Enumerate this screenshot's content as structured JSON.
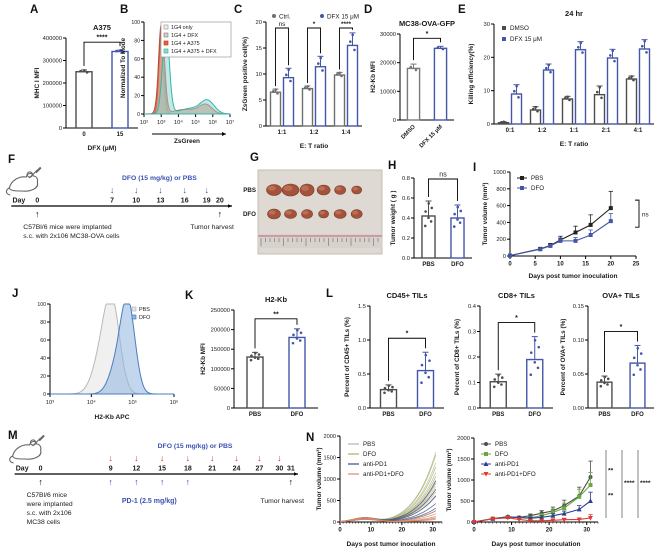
{
  "panels": {
    "A": {
      "letter": "A"
    },
    "B": {
      "letter": "B"
    },
    "C": {
      "letter": "C"
    },
    "D": {
      "letter": "D"
    },
    "E": {
      "letter": "E"
    },
    "F": {
      "letter": "F"
    },
    "G": {
      "letter": "G"
    },
    "H": {
      "letter": "H"
    },
    "I": {
      "letter": "I"
    },
    "J": {
      "letter": "J"
    },
    "K": {
      "letter": "K"
    },
    "L": {
      "letter": "L"
    },
    "M": {
      "letter": "M"
    },
    "N": {
      "letter": "N"
    }
  },
  "colors": {
    "blue": "#4456a8",
    "gray": "#4d4d4d",
    "red": "#c23b2a",
    "teal": "#39b3aa",
    "green": "#6aa93f",
    "navy": "#2c3e8c"
  },
  "chart_data": {
    "A": {
      "type": "bar",
      "title": "A375",
      "ylabel": "MHC I MFI",
      "xlabel": "DFX (μM)",
      "categories": [
        "0",
        "15"
      ],
      "series": [
        {
          "colors": [
            "#4d4d4d",
            "#4456a8"
          ],
          "values": [
            250000,
            340000
          ],
          "errors": [
            8000,
            6000
          ]
        }
      ],
      "ylim": [
        0,
        400000
      ],
      "yticks": [
        "0",
        "100000",
        "200000",
        "300000",
        "400000"
      ],
      "sig": "****",
      "sig_raise": 8,
      "ndots": 3,
      "ml": 34,
      "mt": 20,
      "mb": 24
    },
    "B": {
      "type": "hist",
      "ylabel": "Normalized To Mode",
      "xlabel": "ZsGreen",
      "xarrow": true,
      "legend_box": true,
      "yticks": [
        "0",
        "20",
        "40",
        "60",
        "80",
        "100"
      ],
      "xticklabels": [
        "10²",
        "10³",
        "10⁴",
        "10⁵",
        "10⁶",
        "10⁷"
      ],
      "series": [
        {
          "name": "1G4 only",
          "fill": "#f0f0f0",
          "stroke": "#9a9a9a",
          "peaks": [
            {
              "c": 0.195,
              "w": 0.035,
              "h": 95
            }
          ]
        },
        {
          "name": "1G4 + DFX",
          "fill": "#cfcfcf",
          "stroke": "#8a8a8a",
          "peaks": [
            {
              "c": 0.205,
              "w": 0.04,
              "h": 92
            }
          ]
        },
        {
          "name": "1G4 + A375",
          "fill": "#e0603c",
          "stroke": "#c24626",
          "peaks": [
            {
              "c": 0.205,
              "w": 0.048,
              "h": 97
            },
            {
              "c": 0.5,
              "w": 0.22,
              "h": 5
            },
            {
              "c": 0.72,
              "w": 0.1,
              "h": 9
            }
          ]
        },
        {
          "name": "1G4 + A375 + DFX",
          "fill": "#8ed9d3",
          "stroke": "#39b3aa",
          "peaks": [
            {
              "c": 0.255,
              "w": 0.055,
              "h": 94
            },
            {
              "c": 0.55,
              "w": 0.2,
              "h": 6
            },
            {
              "c": 0.74,
              "w": 0.11,
              "h": 13
            }
          ]
        }
      ],
      "ml": 26
    },
    "C": {
      "type": "bar",
      "ylabel": "ZsGreen positive cell(%)",
      "xlabel": "E: T ratio",
      "categories": [
        "1:1",
        "1:2",
        "1:4"
      ],
      "series": [
        {
          "name": "Ctrl.",
          "color": "#6e6e6e",
          "values": [
            6.5,
            7.2,
            9.8
          ],
          "errors": [
            0.6,
            0.5,
            0.5
          ]
        },
        {
          "name": "DFX 15 μM",
          "color": "#4456a8",
          "values": [
            9.3,
            11.4,
            15.5
          ],
          "errors": [
            1.8,
            2.0,
            2.4
          ]
        }
      ],
      "ylim": [
        0,
        20
      ],
      "yticks": [
        "0",
        "5",
        "10",
        "15",
        "20"
      ],
      "sigs": [
        "ns",
        "*",
        "****"
      ],
      "legend": {
        "pos": "top"
      },
      "ndots": 3,
      "ml": 26,
      "mt": 14,
      "mb": 24
    },
    "D": {
      "type": "bar",
      "title": "MC38-OVA-GFP",
      "ylabel": "H2-Kb MFI",
      "categories": [
        "DMSO",
        "DFX 15 μM"
      ],
      "rot_x": true,
      "series": [
        {
          "colors": [
            "#7a7a7a",
            "#4456a8"
          ],
          "values": [
            18000,
            25000
          ],
          "errors": [
            1500,
            700
          ]
        }
      ],
      "ylim": [
        0,
        30000
      ],
      "yticks": [
        "0",
        "10000",
        "20000",
        "30000"
      ],
      "sig": "*",
      "sig_raise": 8,
      "ndots": 2,
      "ml": 32,
      "mt": 20,
      "mb": 30
    },
    "E": {
      "type": "bar",
      "title": "24 hr",
      "ylabel": "Killing efficiency(%)",
      "xlabel": "E: T ratio",
      "categories": [
        "0:1",
        "1:2",
        "1:1",
        "2:1",
        "4:1"
      ],
      "series": [
        {
          "name": "DMSO",
          "color": "#4d4d4d",
          "values": [
            0.4,
            4.2,
            7.5,
            8.8,
            13.5
          ],
          "errors": [
            0.3,
            1.0,
            0.8,
            2.6,
            0.9
          ]
        },
        {
          "name": "DFX 15 μM",
          "color": "#4456a8",
          "values": [
            9.0,
            16.2,
            22.3,
            19.8,
            22.5
          ],
          "errors": [
            2.8,
            1.8,
            2.4,
            2.6,
            2.8
          ]
        }
      ],
      "ylim": [
        0,
        30
      ],
      "yticks": [
        "0",
        "10",
        "20",
        "30"
      ],
      "legend": {
        "pos": "inside"
      },
      "ndots": 3,
      "ml": 28,
      "mt": 18,
      "mb": 24
    },
    "F": {
      "type": "timeline",
      "treatment": "DFO (15 mg/kg) or PBS",
      "treatment_color": "#3a52b4",
      "down_color": "#3a52b4",
      "day_prefix": "Day",
      "days": [
        {
          "t": "0",
          "x": 0.115
        },
        {
          "t": "7",
          "x": 0.455
        },
        {
          "t": "10",
          "x": 0.565
        },
        {
          "t": "13",
          "x": 0.675
        },
        {
          "t": "16",
          "x": 0.785
        },
        {
          "t": "19",
          "x": 0.885
        },
        {
          "t": "20",
          "x": 0.945
        }
      ],
      "down": [
        1,
        2,
        3,
        4,
        5
      ],
      "up": [
        {
          "i": 0,
          "c": "#000000"
        },
        {
          "i": 6,
          "c": "#000000"
        }
      ],
      "caption_left": "C57Bl/6 mice were implanted\ns.c. with 2x106 MC38-OVA cells",
      "caption_right": "Tumor harvest",
      "ty": 42
    },
    "G": {
      "type": "photo",
      "bg": "#ded9d2",
      "rows": [
        {
          "label": "PBS",
          "sizes": [
            [
              15,
              11
            ],
            [
              17,
              12
            ],
            [
              14,
              12
            ],
            [
              13,
              10
            ],
            [
              11,
              9
            ],
            [
              10,
              8
            ]
          ]
        },
        {
          "label": "DFO",
          "sizes": [
            [
              13,
              10
            ],
            [
              12,
              9
            ],
            [
              11,
              9
            ],
            [
              10,
              8
            ],
            [
              12,
              9
            ],
            [
              11,
              9
            ]
          ]
        }
      ],
      "tumor_fill": "#a3523c",
      "tumor_hi": "#c47a5e",
      "tumor_stroke": "#7c3a28"
    },
    "H": {
      "type": "bar",
      "ylabel": "Tumor weight ( g )",
      "categories": [
        "PBS",
        "DFO"
      ],
      "series": [
        {
          "colors": [
            "#4d4d4d",
            "#4456a8"
          ],
          "values": [
            0.42,
            0.4
          ],
          "errors": [
            0.15,
            0.13
          ]
        }
      ],
      "ylim": [
        0,
        0.8
      ],
      "yticks": [
        "0.0",
        "0.2",
        "0.4",
        "0.6",
        "0.8"
      ],
      "sig": "ns",
      "sig_raise": 22,
      "ndots": 6,
      "ml": 26,
      "mt": 10,
      "mb": 16
    },
    "I": {
      "type": "line",
      "ylabel": "Tumor volume (mm³)",
      "xlabel": "Days post tumor inoculation",
      "x": [
        0,
        6,
        8,
        10,
        13,
        16,
        20
      ],
      "series": [
        {
          "name": "PBS",
          "color": "#222222",
          "marker": "square",
          "values": [
            5,
            85,
            125,
            190,
            280,
            370,
            570
          ],
          "errors": [
            0,
            15,
            25,
            45,
            75,
            120,
            200
          ]
        },
        {
          "name": "DFO",
          "color": "#4456a8",
          "marker": "square",
          "values": [
            5,
            80,
            120,
            180,
            180,
            250,
            415
          ],
          "errors": [
            0,
            12,
            20,
            35,
            40,
            60,
            90
          ]
        }
      ],
      "xlim": [
        0,
        25
      ],
      "xticks": [
        "0",
        "5",
        "10",
        "15",
        "20",
        "25"
      ],
      "ylim": [
        0,
        1000
      ],
      "yticks": [
        "0",
        "200",
        "400",
        "600",
        "800",
        "1000"
      ],
      "legend": true,
      "sig_right": "ns",
      "ml": 30,
      "mr": 24,
      "mt": 8,
      "mb": 24
    },
    "J": {
      "type": "hist",
      "xlabel": "H2-Kb APC",
      "yticks": [
        "0",
        "20",
        "40",
        "60",
        "80",
        "100"
      ],
      "xticklabels": [
        "10³",
        "10⁴",
        "10⁵",
        "10⁶"
      ],
      "series": [
        {
          "name": "PBS",
          "fill": "#e4e4e4",
          "stroke": "#b8b8b8",
          "peaks": [
            {
              "c": 0.5,
              "w": 0.09,
              "h": 95
            },
            {
              "c": 0.41,
              "w": 0.1,
              "h": 35
            }
          ]
        },
        {
          "name": "DFO",
          "fill": "#8fb4e0",
          "stroke": "#4a7cc0",
          "peaks": [
            {
              "c": 0.63,
              "w": 0.08,
              "h": 96
            },
            {
              "c": 0.54,
              "w": 0.09,
              "h": 30
            }
          ]
        }
      ],
      "ml": 26
    },
    "K": {
      "type": "bar",
      "title": "H2-Kb",
      "ylabel": "H2-Kb MFI",
      "categories": [
        "PBS",
        "DFO"
      ],
      "series": [
        {
          "colors": [
            "#4d4d4d",
            "#4456a8"
          ],
          "values": [
            130000,
            180000
          ],
          "errors": [
            12000,
            22000
          ]
        }
      ],
      "ylim": [
        0,
        250000
      ],
      "yticks": [
        "0",
        "50000",
        "100000",
        "150000",
        "200000",
        "250000"
      ],
      "sig": "**",
      "sig_raise": 10,
      "ndots": 6,
      "ml": 36,
      "mt": 18,
      "mb": 16
    },
    "L1": {
      "type": "bar",
      "title": "CD45+ TILs",
      "ylabel": "Percent of CD45+ TILs (%)",
      "categories": [
        "PBS",
        "DFO"
      ],
      "series": [
        {
          "colors": [
            "#4d4d4d",
            "#4456a8"
          ],
          "values": [
            0.27,
            0.55
          ],
          "errors": [
            0.07,
            0.27
          ]
        }
      ],
      "ylim": [
        0,
        1.5
      ],
      "yticks": [
        "0.0",
        "0.5",
        "1.0",
        "1.5"
      ],
      "sig": "*",
      "sig_raise": 14,
      "ndots": 6,
      "ml": 28,
      "mt": 16,
      "mb": 16
    },
    "L2": {
      "type": "bar",
      "title": "CD8+ TILs",
      "ylabel": "Percent of CD8+ TILs (%)",
      "categories": [
        "PBS",
        "DFO"
      ],
      "series": [
        {
          "colors": [
            "#4d4d4d",
            "#4456a8"
          ],
          "values": [
            0.103,
            0.19
          ],
          "errors": [
            0.03,
            0.09
          ]
        }
      ],
      "ylim": [
        0,
        0.4
      ],
      "yticks": [
        "0.0",
        "0.1",
        "0.2",
        "0.3",
        "0.4"
      ],
      "sig": "*",
      "sig_raise": 14,
      "ndots": 6,
      "ml": 28,
      "mt": 16,
      "mb": 16
    },
    "L3": {
      "type": "bar",
      "title": "OVA+ TILs",
      "ylabel": "Percent of OVA+ TILs (%)",
      "categories": [
        "PBS",
        "DFO"
      ],
      "series": [
        {
          "colors": [
            "#4d4d4d",
            "#4456a8"
          ],
          "values": [
            0.038,
            0.066
          ],
          "errors": [
            0.009,
            0.026
          ]
        }
      ],
      "ylim": [
        0,
        0.15
      ],
      "yticks": [
        "0.00",
        "0.05",
        "0.10",
        "0.15"
      ],
      "sig": "*",
      "sig_raise": 14,
      "ndots": 6,
      "ml": 30,
      "mt": 16,
      "mb": 16
    },
    "M": {
      "type": "timeline",
      "treatment": "DFO (15 mg/kg) or PBS",
      "treatment_color": "#3a52b4",
      "down_color": "#c23b2a",
      "day_prefix": "Day",
      "days": [
        {
          "t": "0",
          "x": 0.1
        },
        {
          "t": "9",
          "x": 0.345
        },
        {
          "t": "12",
          "x": 0.435
        },
        {
          "t": "15",
          "x": 0.525
        },
        {
          "t": "18",
          "x": 0.615
        },
        {
          "t": "21",
          "x": 0.7
        },
        {
          "t": "24",
          "x": 0.785
        },
        {
          "t": "27",
          "x": 0.865
        },
        {
          "t": "30",
          "x": 0.935
        },
        {
          "t": "31",
          "x": 0.975
        }
      ],
      "down": [
        1,
        2,
        3,
        4,
        5,
        6,
        7,
        8
      ],
      "up": [
        {
          "i": 0,
          "c": "#000000"
        },
        {
          "i": 9,
          "c": "#000000"
        }
      ],
      "pd1_up": [
        1,
        2,
        3,
        4
      ],
      "pd1_label": "PD-1 (2.5 mg/kg)",
      "caption_left": "C57Bl/6 mice\nwere implanted\ns.c. with 2x106\nMC38 cells",
      "caption_right": "Tumor harvest",
      "ty": 36
    },
    "N1": {
      "type": "spaghetti",
      "ylabel": "Tumor volume (mm³)",
      "xlabel": "Days post tumor inoculation",
      "xlim": [
        0,
        33
      ],
      "xticks": [
        "0",
        "10",
        "20",
        "30"
      ],
      "minor_x": 1,
      "ylim": [
        0,
        2000
      ],
      "yticks": [
        "0",
        "500",
        "1000",
        "1500",
        "2000"
      ],
      "groups": [
        {
          "name": "PBS",
          "color": "#b8b4a4",
          "finals": [
            1620,
            1380,
            1150,
            980,
            830,
            700
          ]
        },
        {
          "name": "DFO",
          "color": "#a9b25c",
          "finals": [
            1560,
            1280,
            1060,
            900,
            760,
            620
          ]
        },
        {
          "name": "anti-PD1",
          "color": "#3c4a86",
          "finals": [
            950,
            760,
            600,
            430,
            320,
            260
          ]
        },
        {
          "name": "anti-PD1+DFO",
          "color": "#d98a6a",
          "finals": [
            260,
            190,
            130,
            100,
            80,
            60
          ]
        }
      ],
      "ml": 26
    },
    "N2": {
      "type": "line",
      "ylabel": "Tumor volume (mm³)",
      "xlabel": "Days post tumor inoculation",
      "x": [
        0,
        5,
        9,
        12,
        15,
        18,
        21,
        24,
        28,
        31
      ],
      "series": [
        {
          "name": "PBS",
          "color": "#4d4d4d",
          "marker": "circle",
          "values": [
            0,
            80,
            125,
            110,
            150,
            210,
            265,
            390,
            620,
            1070
          ],
          "errors": [
            0,
            10,
            20,
            25,
            40,
            60,
            90,
            130,
            210,
            380
          ]
        },
        {
          "name": "DFO",
          "color": "#6aa93f",
          "marker": "square",
          "values": [
            0,
            80,
            120,
            105,
            100,
            150,
            230,
            330,
            600,
            880
          ],
          "errors": [
            0,
            10,
            20,
            25,
            30,
            50,
            80,
            120,
            180,
            300
          ]
        },
        {
          "name": "anti-PD1",
          "color": "#2c3e8c",
          "marker": "tri",
          "values": [
            0,
            78,
            122,
            105,
            90,
            110,
            150,
            200,
            300,
            500
          ],
          "errors": [
            0,
            10,
            18,
            22,
            28,
            38,
            48,
            60,
            90,
            210
          ]
        },
        {
          "name": "anti-PD1+DFO",
          "color": "#e23b2e",
          "marker": "tridown",
          "values": [
            0,
            75,
            100,
            60,
            30,
            30,
            40,
            55,
            60,
            95
          ],
          "errors": [
            0,
            10,
            15,
            15,
            10,
            10,
            15,
            25,
            35,
            80
          ]
        }
      ],
      "xlim": [
        0,
        33
      ],
      "xticks": [
        "0",
        "10",
        "20",
        "30"
      ],
      "minor_x": 1,
      "ylim": [
        0,
        2000
      ],
      "yticks": [
        "0",
        "500",
        "1000",
        "1500",
        "2000"
      ],
      "legend": true,
      "right_sigs": [
        [
          "**",
          "**"
        ],
        [
          "****"
        ],
        [
          "****"
        ]
      ],
      "ml": 30,
      "mr": 62,
      "mt": 8,
      "mb": 26
    }
  }
}
